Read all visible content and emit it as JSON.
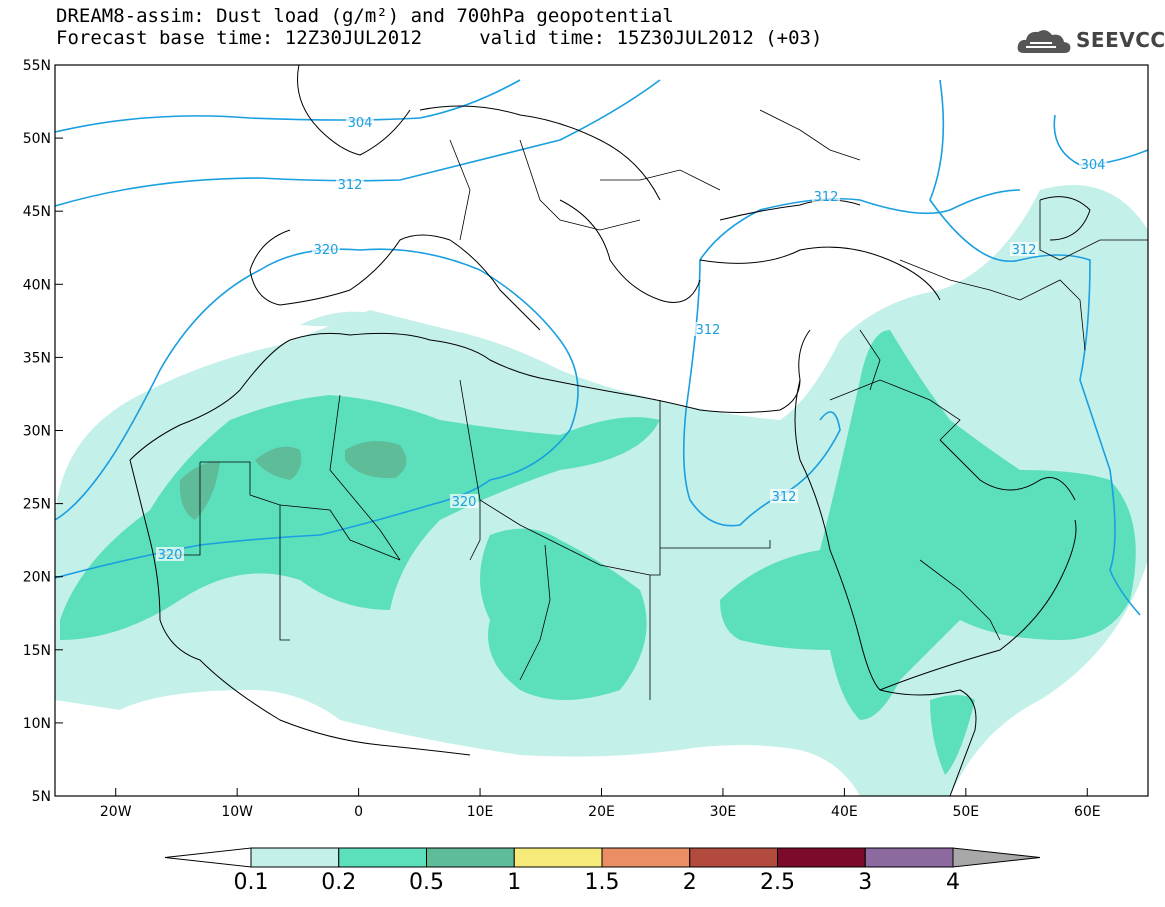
{
  "title": {
    "line1": "DREAM8-assim: Dust load (g/m²) and 700hPa geopotential",
    "line2": "Forecast base time: 12Z30JUL2012     valid time: 15Z30JUL2012 (+03)"
  },
  "logo": {
    "text": "SEEVCCC",
    "icon": "cloud-icon"
  },
  "axes": {
    "lon_ticks": [
      "20W",
      "10W",
      "0",
      "10E",
      "20E",
      "30E",
      "40E",
      "50E",
      "60E"
    ],
    "lat_ticks": [
      "55N",
      "50N",
      "45N",
      "40N",
      "35N",
      "30N",
      "25N",
      "20N",
      "15N",
      "10N",
      "5N"
    ],
    "lon_range": [
      -25,
      65
    ],
    "lat_range": [
      5,
      55
    ]
  },
  "contours": {
    "labels": [
      "304",
      "304",
      "312",
      "312",
      "312",
      "312",
      "312",
      "320",
      "320",
      "320"
    ],
    "color": "#1a9fe0"
  },
  "colorbar": {
    "labels": [
      "0.1",
      "0.2",
      "0.5",
      "1",
      "1.5",
      "2",
      "2.5",
      "3",
      "4"
    ],
    "colors": [
      "#c4f0ea",
      "#5ce0bc",
      "#5fbc98",
      "#f5ea7a",
      "#eb8e66",
      "#b24a3e",
      "#7c0a2a",
      "#8c6aa0"
    ],
    "under_color": "#ffffff",
    "over_color": "#a8a8a8"
  }
}
